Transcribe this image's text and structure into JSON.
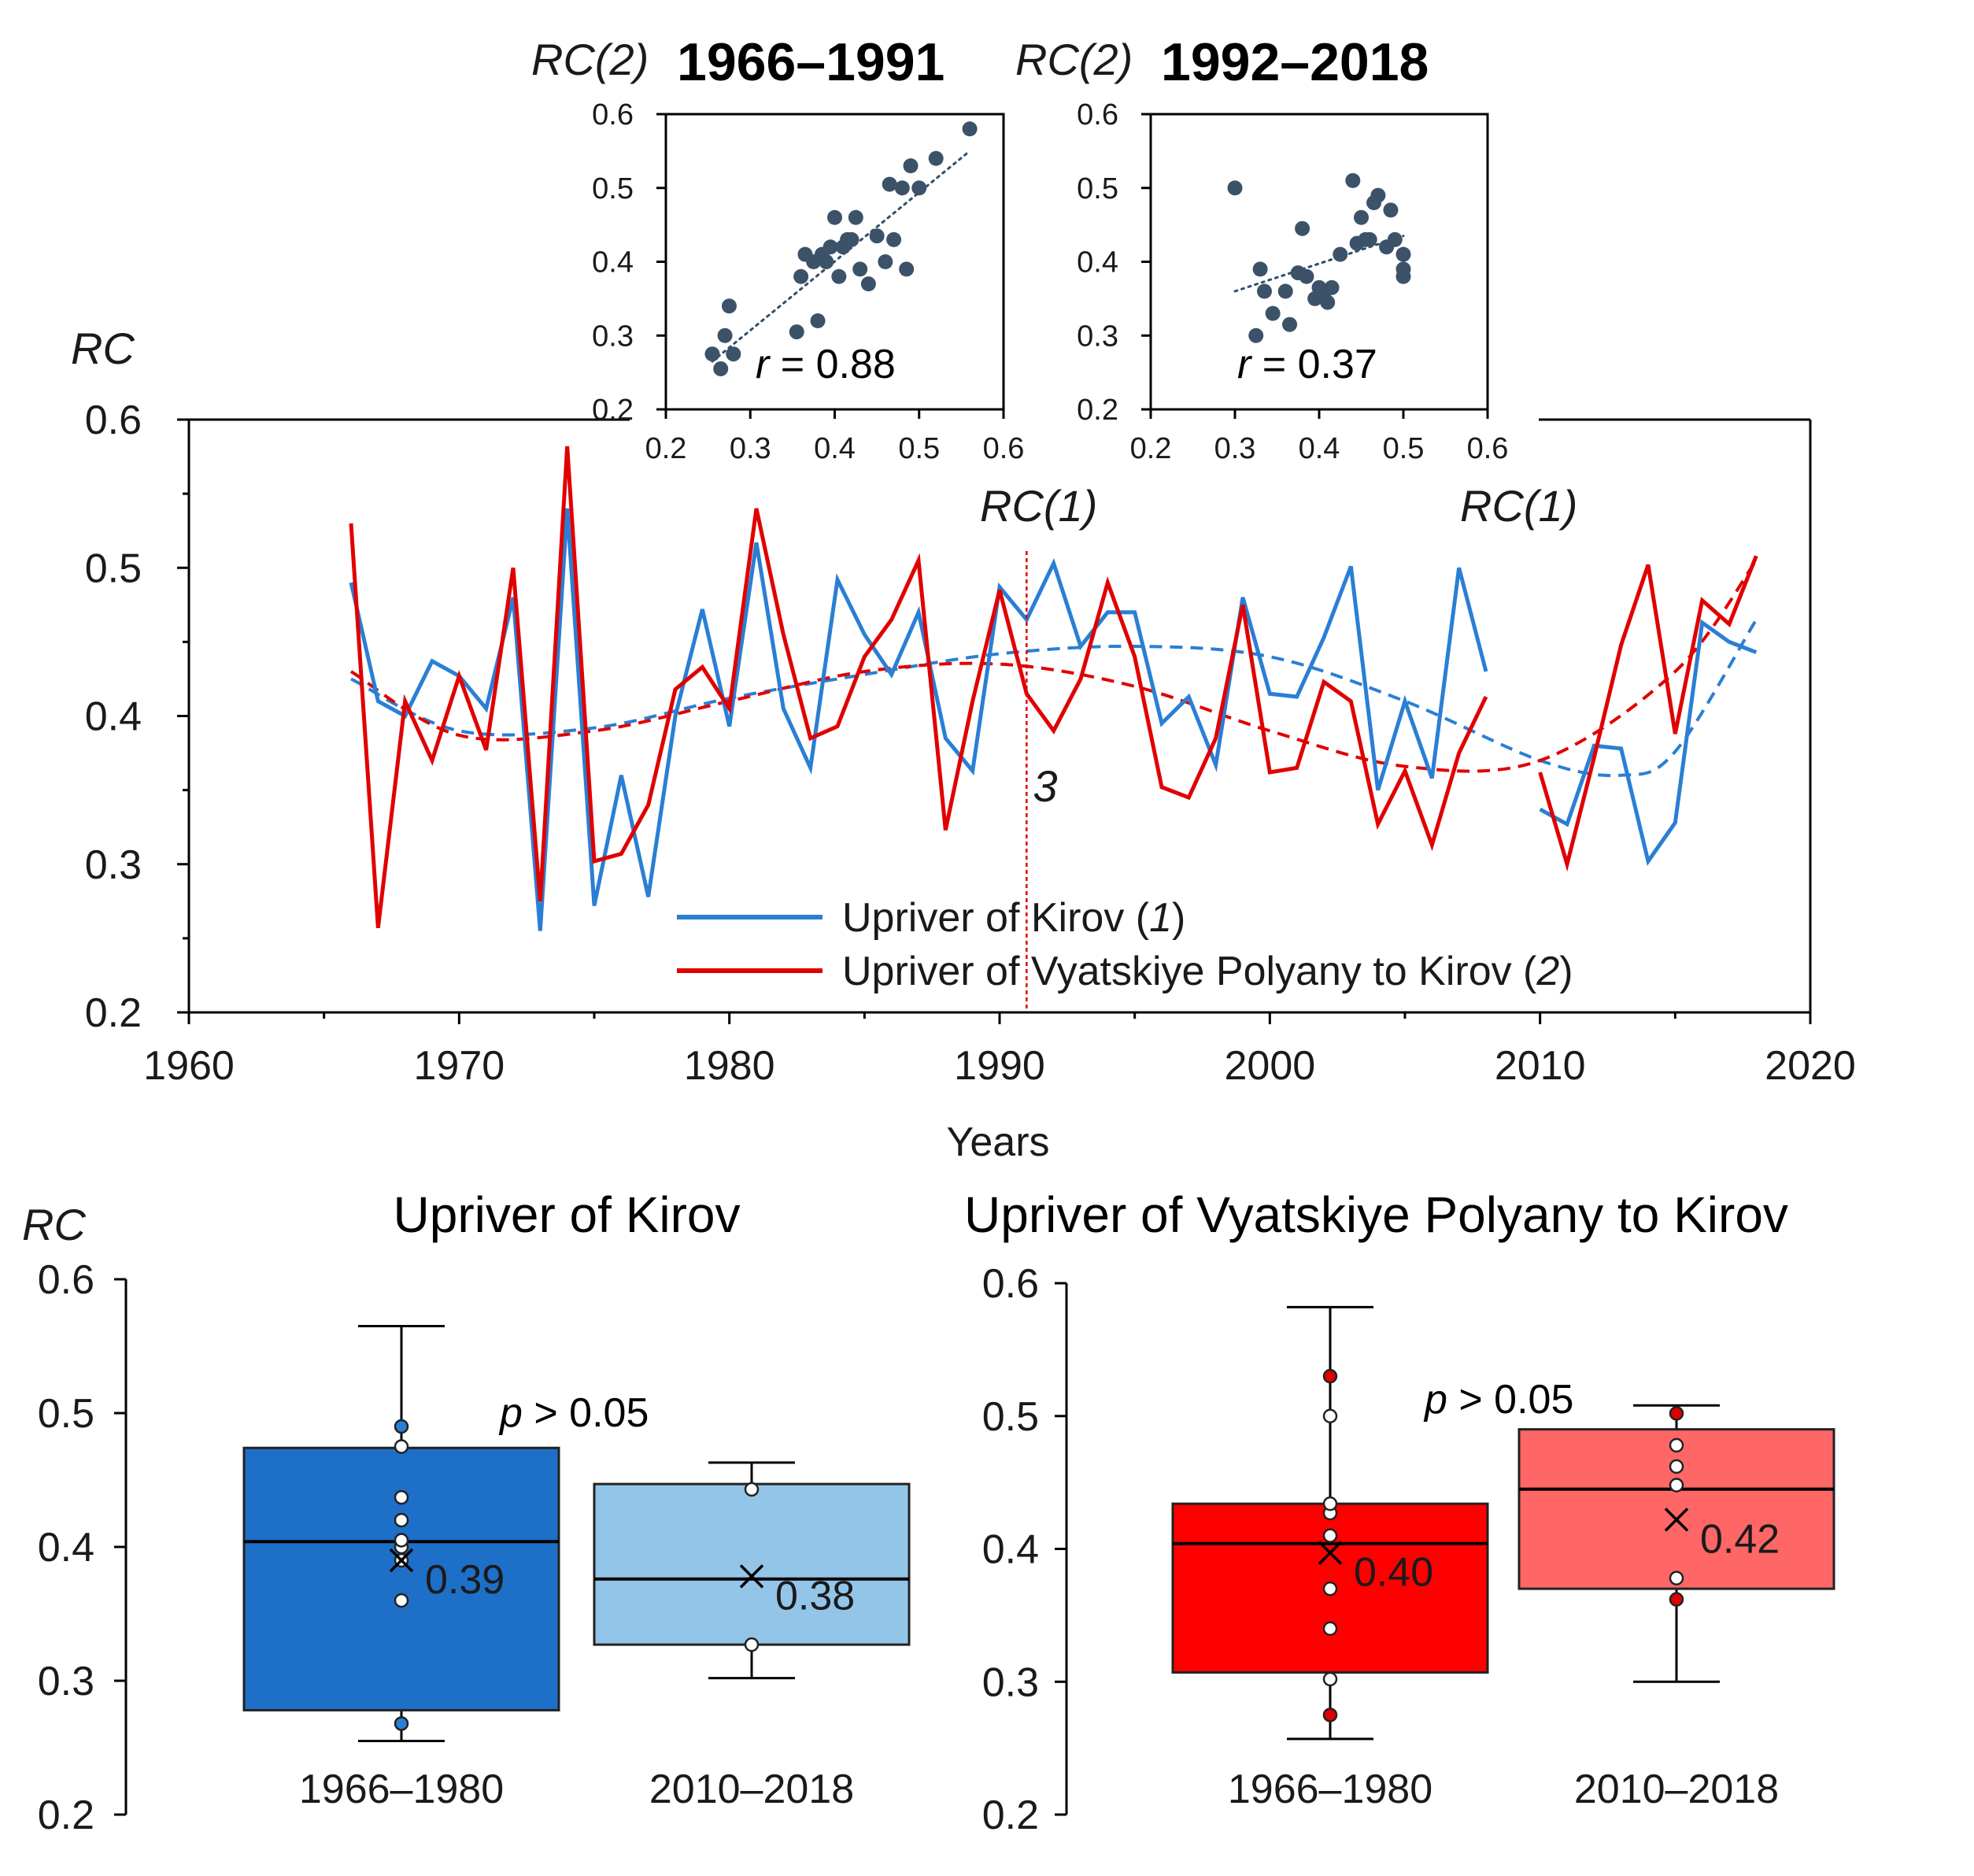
{
  "chart_data": [
    {
      "id": "main",
      "type": "line",
      "x_label": "Years",
      "y_label": "RC",
      "xlim": [
        1960,
        2020
      ],
      "ylim": [
        0.2,
        0.6
      ],
      "x_ticks": [
        "1960",
        "1970",
        "1980",
        "1990",
        "2000",
        "2010",
        "2020"
      ],
      "y_ticks": [
        "0.2",
        "0.3",
        "0.4",
        "0.5",
        "0.6"
      ],
      "vline": {
        "x": 1991,
        "label": "3",
        "color": "#e00000"
      },
      "legend": [
        {
          "label_prefix": "Upriver of Kirov (",
          "label_num": "1",
          "label_suffix": ")",
          "color": "#2a7fd4"
        },
        {
          "label_prefix": "Upriver of Vyatskiye Polyany to Kirov (",
          "label_num": "2",
          "label_suffix": ")",
          "color": "#e00000"
        }
      ],
      "series": [
        {
          "name": "Upriver of Kirov (1)",
          "color": "#2a7fd4",
          "segments": [
            {
              "x": [
                1966,
                1967,
                1968,
                1969,
                1970,
                1971,
                1972,
                1973,
                1974,
                1975,
                1976,
                1977,
                1978,
                1979,
                1980,
                1981,
                1982,
                1983,
                1984,
                1985,
                1986,
                1987,
                1988,
                1989,
                1990,
                1991,
                1992,
                1993,
                1994,
                1995,
                1996,
                1997,
                1998,
                1999,
                2000,
                2001,
                2002,
                2003,
                2004,
                2005,
                2006,
                2007,
                2008
              ],
              "y": [
                0.49,
                0.41,
                0.4,
                0.437,
                0.427,
                0.405,
                0.48,
                0.255,
                0.54,
                0.272,
                0.36,
                0.278,
                0.4,
                0.472,
                0.393,
                0.517,
                0.405,
                0.365,
                0.492,
                0.455,
                0.428,
                0.47,
                0.385,
                0.363,
                0.487,
                0.465,
                0.503,
                0.447,
                0.47,
                0.47,
                0.395,
                0.413,
                0.367,
                0.48,
                0.415,
                0.413,
                0.453,
                0.501,
                0.35,
                0.41,
                0.358,
                0.5,
                0.43
              ]
            },
            {
              "x": [
                2010,
                2011,
                2012,
                2013,
                2014,
                2015,
                2016,
                2017,
                2018
              ],
              "y": [
                0.337,
                0.327,
                0.38,
                0.378,
                0.302,
                0.328,
                0.463,
                0.45,
                0.443
              ]
            }
          ],
          "trend": {
            "x": [
              1966,
              1970,
              1975,
              1980,
              1985,
              1990,
              1995,
              2000,
              2005,
              2010,
              2013,
              2015,
              2018
            ],
            "y": [
              0.425,
              0.39,
              0.392,
              0.412,
              0.428,
              0.442,
              0.447,
              0.44,
              0.41,
              0.37,
              0.36,
              0.376,
              0.465
            ]
          }
        },
        {
          "name": "Upriver of Vyatskiye Polyany to Kirov (2)",
          "color": "#e00000",
          "segments": [
            {
              "x": [
                1966,
                1967,
                1968,
                1969,
                1970,
                1971,
                1972,
                1973,
                1974,
                1975,
                1976,
                1977,
                1978,
                1979,
                1980,
                1981,
                1982,
                1983,
                1984,
                1985,
                1986,
                1987,
                1988,
                1989,
                1990,
                1991,
                1992,
                1993,
                1994,
                1995,
                1996,
                1997,
                1998,
                1999,
                2000,
                2001,
                2002,
                2003,
                2004,
                2005,
                2006,
                2007,
                2008
              ],
              "y": [
                0.53,
                0.257,
                0.41,
                0.37,
                0.427,
                0.377,
                0.5,
                0.275,
                0.582,
                0.302,
                0.307,
                0.34,
                0.418,
                0.433,
                0.405,
                0.54,
                0.455,
                0.385,
                0.393,
                0.44,
                0.465,
                0.505,
                0.323,
                0.41,
                0.485,
                0.415,
                0.39,
                0.425,
                0.49,
                0.44,
                0.352,
                0.345,
                0.385,
                0.475,
                0.362,
                0.365,
                0.423,
                0.41,
                0.327,
                0.363,
                0.313,
                0.375,
                0.413
              ]
            },
            {
              "x": [
                2010,
                2011,
                2012,
                2013,
                2014,
                2015,
                2016,
                2017,
                2018
              ],
              "y": [
                0.362,
                0.3,
                0.372,
                0.448,
                0.502,
                0.388,
                0.478,
                0.462,
                0.508
              ]
            }
          ],
          "trend": {
            "x": [
              1966,
              1970,
              1975,
              1980,
              1985,
              1990,
              1995,
              2000,
              2005,
              2010,
              2015,
              2018
            ],
            "y": [
              0.43,
              0.387,
              0.39,
              0.41,
              0.43,
              0.435,
              0.42,
              0.39,
              0.366,
              0.37,
              0.43,
              0.505
            ]
          }
        }
      ]
    },
    {
      "id": "inset-1966",
      "type": "scatter",
      "title": "1966–1991",
      "x_label_pre": "RC(",
      "x_label_num": "1",
      "x_label_post": ")",
      "y_label": "RC(2)",
      "xlim": [
        0.2,
        0.6
      ],
      "ylim": [
        0.2,
        0.6
      ],
      "x_ticks": [
        "0.2",
        "0.3",
        "0.4",
        "0.5",
        "0.6"
      ],
      "y_ticks": [
        "0.2",
        "0.3",
        "0.4",
        "0.5",
        "0.6"
      ],
      "annotation_r": "r",
      "annotation_val": " = 0.88",
      "trend": {
        "x": [
          0.255,
          0.56
        ],
        "y": [
          0.265,
          0.55
        ]
      },
      "points": {
        "x": [
          0.255,
          0.265,
          0.27,
          0.275,
          0.28,
          0.355,
          0.36,
          0.365,
          0.375,
          0.38,
          0.385,
          0.39,
          0.395,
          0.4,
          0.405,
          0.41,
          0.415,
          0.42,
          0.425,
          0.43,
          0.44,
          0.45,
          0.46,
          0.465,
          0.47,
          0.48,
          0.485,
          0.49,
          0.5,
          0.52,
          0.56
        ],
        "y": [
          0.275,
          0.255,
          0.3,
          0.34,
          0.275,
          0.305,
          0.38,
          0.41,
          0.4,
          0.32,
          0.41,
          0.4,
          0.42,
          0.46,
          0.38,
          0.42,
          0.43,
          0.43,
          0.46,
          0.39,
          0.37,
          0.435,
          0.4,
          0.505,
          0.43,
          0.5,
          0.39,
          0.53,
          0.5,
          0.54,
          0.58
        ]
      }
    },
    {
      "id": "inset-1992",
      "type": "scatter",
      "title": "1992–2018",
      "x_label_pre": "RC(",
      "x_label_num": "1",
      "x_label_post": ")",
      "y_label": "RC(2)",
      "xlim": [
        0.2,
        0.6
      ],
      "ylim": [
        0.2,
        0.6
      ],
      "x_ticks": [
        "0.2",
        "0.3",
        "0.4",
        "0.5",
        "0.6"
      ],
      "y_ticks": [
        "0.2",
        "0.3",
        "0.4",
        "0.5",
        "0.6"
      ],
      "annotation_r": "r",
      "annotation_val": " = 0.37",
      "trend": {
        "x": [
          0.3,
          0.5
        ],
        "y": [
          0.36,
          0.435
        ]
      },
      "points": {
        "x": [
          0.3,
          0.325,
          0.33,
          0.335,
          0.345,
          0.36,
          0.365,
          0.375,
          0.38,
          0.385,
          0.395,
          0.4,
          0.405,
          0.41,
          0.415,
          0.425,
          0.44,
          0.445,
          0.45,
          0.455,
          0.46,
          0.465,
          0.47,
          0.48,
          0.485,
          0.49,
          0.5,
          0.5,
          0.5
        ],
        "y": [
          0.5,
          0.3,
          0.39,
          0.36,
          0.33,
          0.36,
          0.315,
          0.385,
          0.445,
          0.38,
          0.35,
          0.365,
          0.355,
          0.345,
          0.365,
          0.41,
          0.51,
          0.425,
          0.46,
          0.43,
          0.43,
          0.48,
          0.49,
          0.42,
          0.47,
          0.43,
          0.41,
          0.39,
          0.38
        ]
      }
    },
    {
      "id": "box-kirov",
      "type": "box",
      "title": "Upriver of Kirov",
      "y_label": "RC",
      "ylim": [
        0.2,
        0.6
      ],
      "y_ticks": [
        "0.2",
        "0.3",
        "0.4",
        "0.5",
        "0.6"
      ],
      "p_label": "p",
      "p_text": " > 0.05",
      "boxes": [
        {
          "category": "1966–1980",
          "min": 0.255,
          "q1": 0.278,
          "median": 0.404,
          "q3": 0.474,
          "max": 0.565,
          "mean": 0.39,
          "mean_label": "0.39",
          "fill": "#1e6fc8",
          "points": [
            0.268,
            0.36,
            0.39,
            0.4,
            0.405,
            0.42,
            0.437,
            0.475,
            0.49
          ]
        },
        {
          "category": "2010–2018",
          "min": 0.302,
          "q1": 0.327,
          "median": 0.376,
          "q3": 0.447,
          "max": 0.463,
          "mean": 0.378,
          "mean_label": "0.38",
          "fill": "#93c5e8",
          "points": [
            0.327,
            0.443
          ]
        }
      ]
    },
    {
      "id": "box-vyatskiye",
      "type": "box",
      "title": "Upriver of Vyatskiye Polyany to Kirov",
      "ylim": [
        0.2,
        0.6
      ],
      "y_ticks": [
        "0.2",
        "0.3",
        "0.4",
        "0.5",
        "0.6"
      ],
      "p_label": "p",
      "p_text": " > 0.05",
      "boxes": [
        {
          "category": "1966–1980",
          "min": 0.257,
          "q1": 0.307,
          "median": 0.404,
          "q3": 0.434,
          "max": 0.582,
          "mean": 0.397,
          "mean_label": "0.40",
          "fill": "#ff0000",
          "points": [
            0.275,
            0.302,
            0.34,
            0.37,
            0.41,
            0.427,
            0.434,
            0.5,
            0.53
          ]
        },
        {
          "category": "2010–2018",
          "min": 0.3,
          "q1": 0.37,
          "median": 0.445,
          "q3": 0.49,
          "max": 0.508,
          "mean": 0.422,
          "mean_label": "0.42",
          "fill": "#ff6666",
          "points": [
            0.362,
            0.378,
            0.448,
            0.462,
            0.478,
            0.502
          ]
        }
      ]
    }
  ]
}
